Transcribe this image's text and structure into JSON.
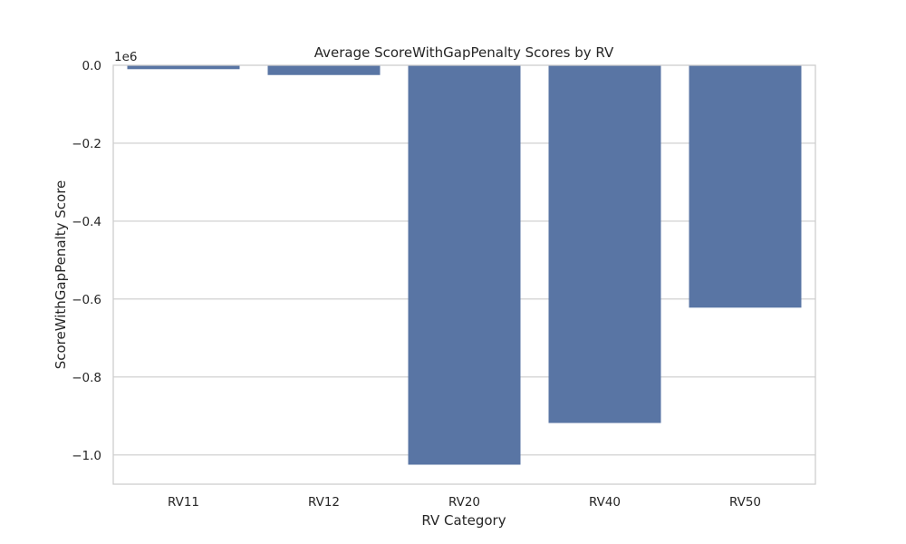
{
  "chart_data": {
    "type": "bar",
    "title": "Average ScoreWithGapPenalty Scores by RV",
    "xlabel": "RV Category",
    "ylabel": "ScoreWithGapPenalty Score",
    "offset_label": "1e6",
    "categories": [
      "RV11",
      "RV12",
      "RV20",
      "RV40",
      "RV50"
    ],
    "values": [
      -10000,
      -25000,
      -1025000,
      -918000,
      -622000
    ],
    "ylim": [
      -1075000,
      0
    ],
    "yticks": [
      0,
      -200000,
      -400000,
      -600000,
      -800000,
      -1000000
    ],
    "ytick_labels": [
      "0.0",
      "−0.2",
      "−0.4",
      "−0.6",
      "−0.8",
      "−1.0"
    ],
    "grid": true,
    "bar_color": "#5975a4"
  }
}
